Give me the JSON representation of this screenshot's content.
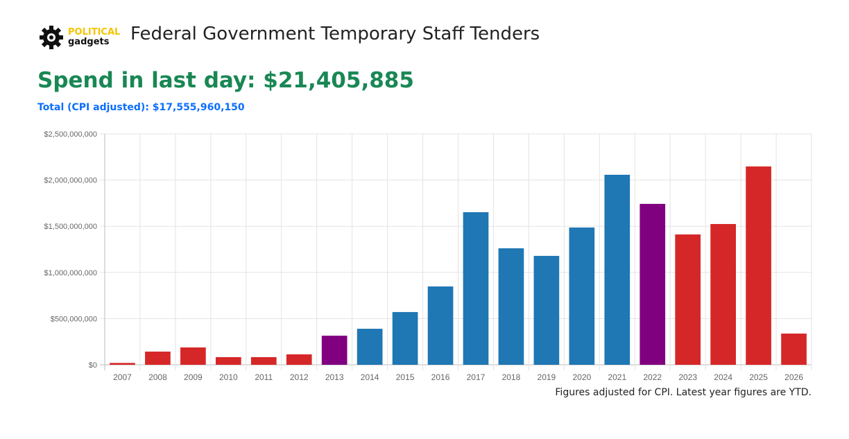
{
  "header": {
    "logo_top": "POLITICAL",
    "logo_bottom": "gadgets",
    "title": "Federal Government Temporary Staff Tenders"
  },
  "spend_last_day": "Spend in last day: $21,405,885",
  "total_cpi": "Total (CPI adjusted): $17,555,960,150",
  "footnote": "Figures adjusted for CPI. Latest year figures are YTD.",
  "colors": {
    "red": "#d62728",
    "blue": "#1f77b4",
    "purple": "#800080"
  },
  "chart_data": {
    "type": "bar",
    "categories": [
      "2007",
      "2008",
      "2009",
      "2010",
      "2011",
      "2012",
      "2013",
      "2014",
      "2015",
      "2016",
      "2017",
      "2018",
      "2019",
      "2020",
      "2021",
      "2022",
      "2023",
      "2024",
      "2025",
      "2026"
    ],
    "values": [
      20000000,
      143000000,
      188000000,
      83000000,
      83000000,
      113000000,
      315000000,
      390000000,
      571000000,
      848000000,
      1652000000,
      1261000000,
      1179000000,
      1486000000,
      2057000000,
      1742000000,
      1411000000,
      1524000000,
      2147000000,
      338000000
    ],
    "bar_colors": [
      "red",
      "red",
      "red",
      "red",
      "red",
      "red",
      "purple",
      "blue",
      "blue",
      "blue",
      "blue",
      "blue",
      "blue",
      "blue",
      "blue",
      "purple",
      "red",
      "red",
      "red",
      "red"
    ],
    "ylim": [
      0,
      2500000000
    ],
    "yticks": [
      "$0",
      "$500,000,000",
      "$1,000,000,000",
      "$1,500,000,000",
      "$2,000,000,000",
      "$2,500,000,000"
    ],
    "grid": true
  }
}
